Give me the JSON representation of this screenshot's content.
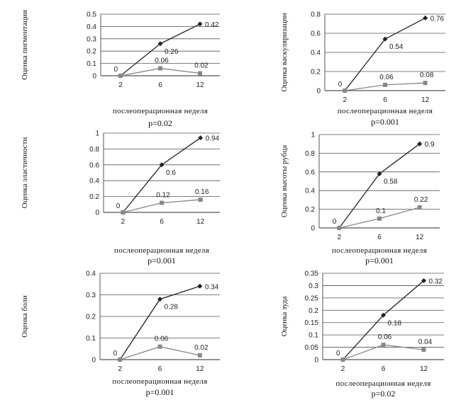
{
  "chart_data": [
    {
      "type": "line",
      "ylabel": "Оценка пигментации",
      "xlabel": "послеоперационная неделя",
      "p_value": "p=0.02",
      "categories": [
        "2",
        "6",
        "12"
      ],
      "ylim": [
        0,
        0.5
      ],
      "yticks": [
        "0",
        "0.1",
        "0.2",
        "0.3",
        "0.4",
        "0.5"
      ],
      "series": [
        {
          "values": [
            0,
            0.26,
            0.42
          ],
          "labels": [
            "",
            "0.26",
            "0.42"
          ],
          "color": "#222222",
          "marker": "diamond"
        },
        {
          "values": [
            0,
            0.06,
            0.02
          ],
          "labels": [
            "0",
            "0.06",
            "0.02"
          ],
          "color": "#888888",
          "marker": "square"
        }
      ],
      "grid": true
    },
    {
      "type": "line",
      "ylabel": "Оценка васкуляризации",
      "xlabel": "послеоперационная неделя",
      "p_value": "p=0.001",
      "categories": [
        "2",
        "6",
        "12"
      ],
      "ylim": [
        0,
        0.8
      ],
      "yticks": [
        "0",
        "0.2",
        "0.4",
        "0.6",
        "0.8"
      ],
      "series": [
        {
          "values": [
            0,
            0.54,
            0.76
          ],
          "labels": [
            "",
            "0.54",
            "0.76"
          ],
          "color": "#222222",
          "marker": "diamond"
        },
        {
          "values": [
            0,
            0.06,
            0.08
          ],
          "labels": [
            "0",
            "0.06",
            "0.08"
          ],
          "color": "#888888",
          "marker": "square"
        }
      ],
      "grid": true
    },
    {
      "type": "line",
      "ylabel": "Оценка эластичности",
      "xlabel": "послеоперационная неделя",
      "p_value": "p=0.001",
      "categories": [
        "2",
        "6",
        "12"
      ],
      "ylim": [
        0,
        1
      ],
      "yticks": [
        "0",
        "0.2",
        "0.4",
        "0.6",
        "0.8",
        "1"
      ],
      "series": [
        {
          "values": [
            0,
            0.6,
            0.94
          ],
          "labels": [
            "",
            "0.6",
            "0.94"
          ],
          "color": "#222222",
          "marker": "diamond"
        },
        {
          "values": [
            0,
            0.12,
            0.16
          ],
          "labels": [
            "0",
            "0.12",
            "0.16"
          ],
          "color": "#888888",
          "marker": "square"
        }
      ],
      "grid": true
    },
    {
      "type": "line",
      "ylabel": "Оценка высоты рубца",
      "xlabel": "послеоперационная неделя",
      "p_value": "p=0.001",
      "categories": [
        "2",
        "6",
        "12"
      ],
      "ylim": [
        0,
        1
      ],
      "yticks": [
        "0",
        "0.2",
        "0.4",
        "0.6",
        "0.8",
        "1"
      ],
      "series": [
        {
          "values": [
            0,
            0.58,
            0.9
          ],
          "labels": [
            "",
            "0.58",
            "0.9"
          ],
          "color": "#222222",
          "marker": "diamond"
        },
        {
          "values": [
            0,
            0.1,
            0.22
          ],
          "labels": [
            "0",
            "0.1",
            "0.22"
          ],
          "color": "#888888",
          "marker": "square"
        }
      ],
      "grid": true
    },
    {
      "type": "line",
      "ylabel": "Оценка боли",
      "xlabel": "послеоперационная неделя",
      "p_value": "p=0.001",
      "categories": [
        "2",
        "6",
        "12"
      ],
      "ylim": [
        0,
        0.4
      ],
      "yticks": [
        "0",
        "0.1",
        "0.2",
        "0.3",
        "0.4"
      ],
      "series": [
        {
          "values": [
            0,
            0.28,
            0.34
          ],
          "labels": [
            "",
            "0.28",
            "0.34"
          ],
          "color": "#222222",
          "marker": "diamond"
        },
        {
          "values": [
            0,
            0.06,
            0.02
          ],
          "labels": [
            "0",
            "0.06",
            "0.02"
          ],
          "color": "#888888",
          "marker": "square"
        }
      ],
      "grid": true
    },
    {
      "type": "line",
      "ylabel": "Оценка зуда",
      "xlabel": "послеоперационная неделя",
      "p_value": "p=0.02",
      "categories": [
        "2",
        "6",
        "12"
      ],
      "ylim": [
        0,
        0.35
      ],
      "yticks": [
        "0",
        "0.05",
        "0.1",
        "0.15",
        "0.2",
        "0.25",
        "0.3",
        "0.35"
      ],
      "series": [
        {
          "values": [
            0,
            0.18,
            0.32
          ],
          "labels": [
            "",
            "0.18",
            "0.32"
          ],
          "color": "#222222",
          "marker": "diamond"
        },
        {
          "values": [
            0,
            0.06,
            0.04
          ],
          "labels": [
            "0",
            "0.06",
            "0.04"
          ],
          "color": "#888888",
          "marker": "square"
        }
      ],
      "grid": true
    }
  ]
}
